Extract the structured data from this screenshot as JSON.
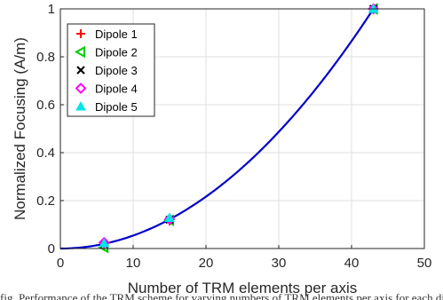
{
  "chart_data": {
    "type": "scatter",
    "xlabel": "Number of TRM elements per axis",
    "ylabel": "Normalized Focusing (A/m)",
    "xlim": [
      0,
      50
    ],
    "ylim": [
      0,
      1
    ],
    "xticks": [
      0,
      10,
      20,
      30,
      40,
      50
    ],
    "yticks": [
      0,
      0.2,
      0.4,
      0.6,
      0.8,
      1
    ],
    "xtick_labels": [
      "0",
      "10",
      "20",
      "30",
      "40",
      "50"
    ],
    "ytick_labels": [
      "0",
      "0.2",
      "0.4",
      "0.6",
      "0.8",
      "1"
    ],
    "grid": true,
    "legend_position": "top-left",
    "series": [
      {
        "name": "Dipole 1",
        "marker": "plus",
        "color": "#ff0000",
        "x": [
          6,
          15,
          43
        ],
        "y": [
          0.01,
          0.115,
          1.0
        ]
      },
      {
        "name": "Dipole 2",
        "marker": "triangle-left",
        "color": "#00cc00",
        "x": [
          6,
          15,
          43
        ],
        "y": [
          0.005,
          0.118,
          1.0
        ]
      },
      {
        "name": "Dipole 3",
        "marker": "x",
        "color": "#000000",
        "x": [
          6,
          15,
          43
        ],
        "y": [
          0.018,
          0.12,
          1.0
        ]
      },
      {
        "name": "Dipole 4",
        "marker": "diamond",
        "color": "#ff00ff",
        "x": [
          6,
          15,
          43
        ],
        "y": [
          0.025,
          0.122,
          1.0
        ]
      },
      {
        "name": "Dipole 5",
        "marker": "triangle-up",
        "color": "#00e5e5",
        "x": [
          6,
          15,
          43
        ],
        "y": [
          0.022,
          0.128,
          1.0
        ]
      }
    ],
    "fit_curve": {
      "color": "#0000cc",
      "exponent": 2,
      "coefficient": 0.000541,
      "x_range": [
        0,
        43
      ]
    }
  },
  "caption": "fig. Performance of the TRM scheme for varying numbers of TRM elements per axis for each dipole source"
}
